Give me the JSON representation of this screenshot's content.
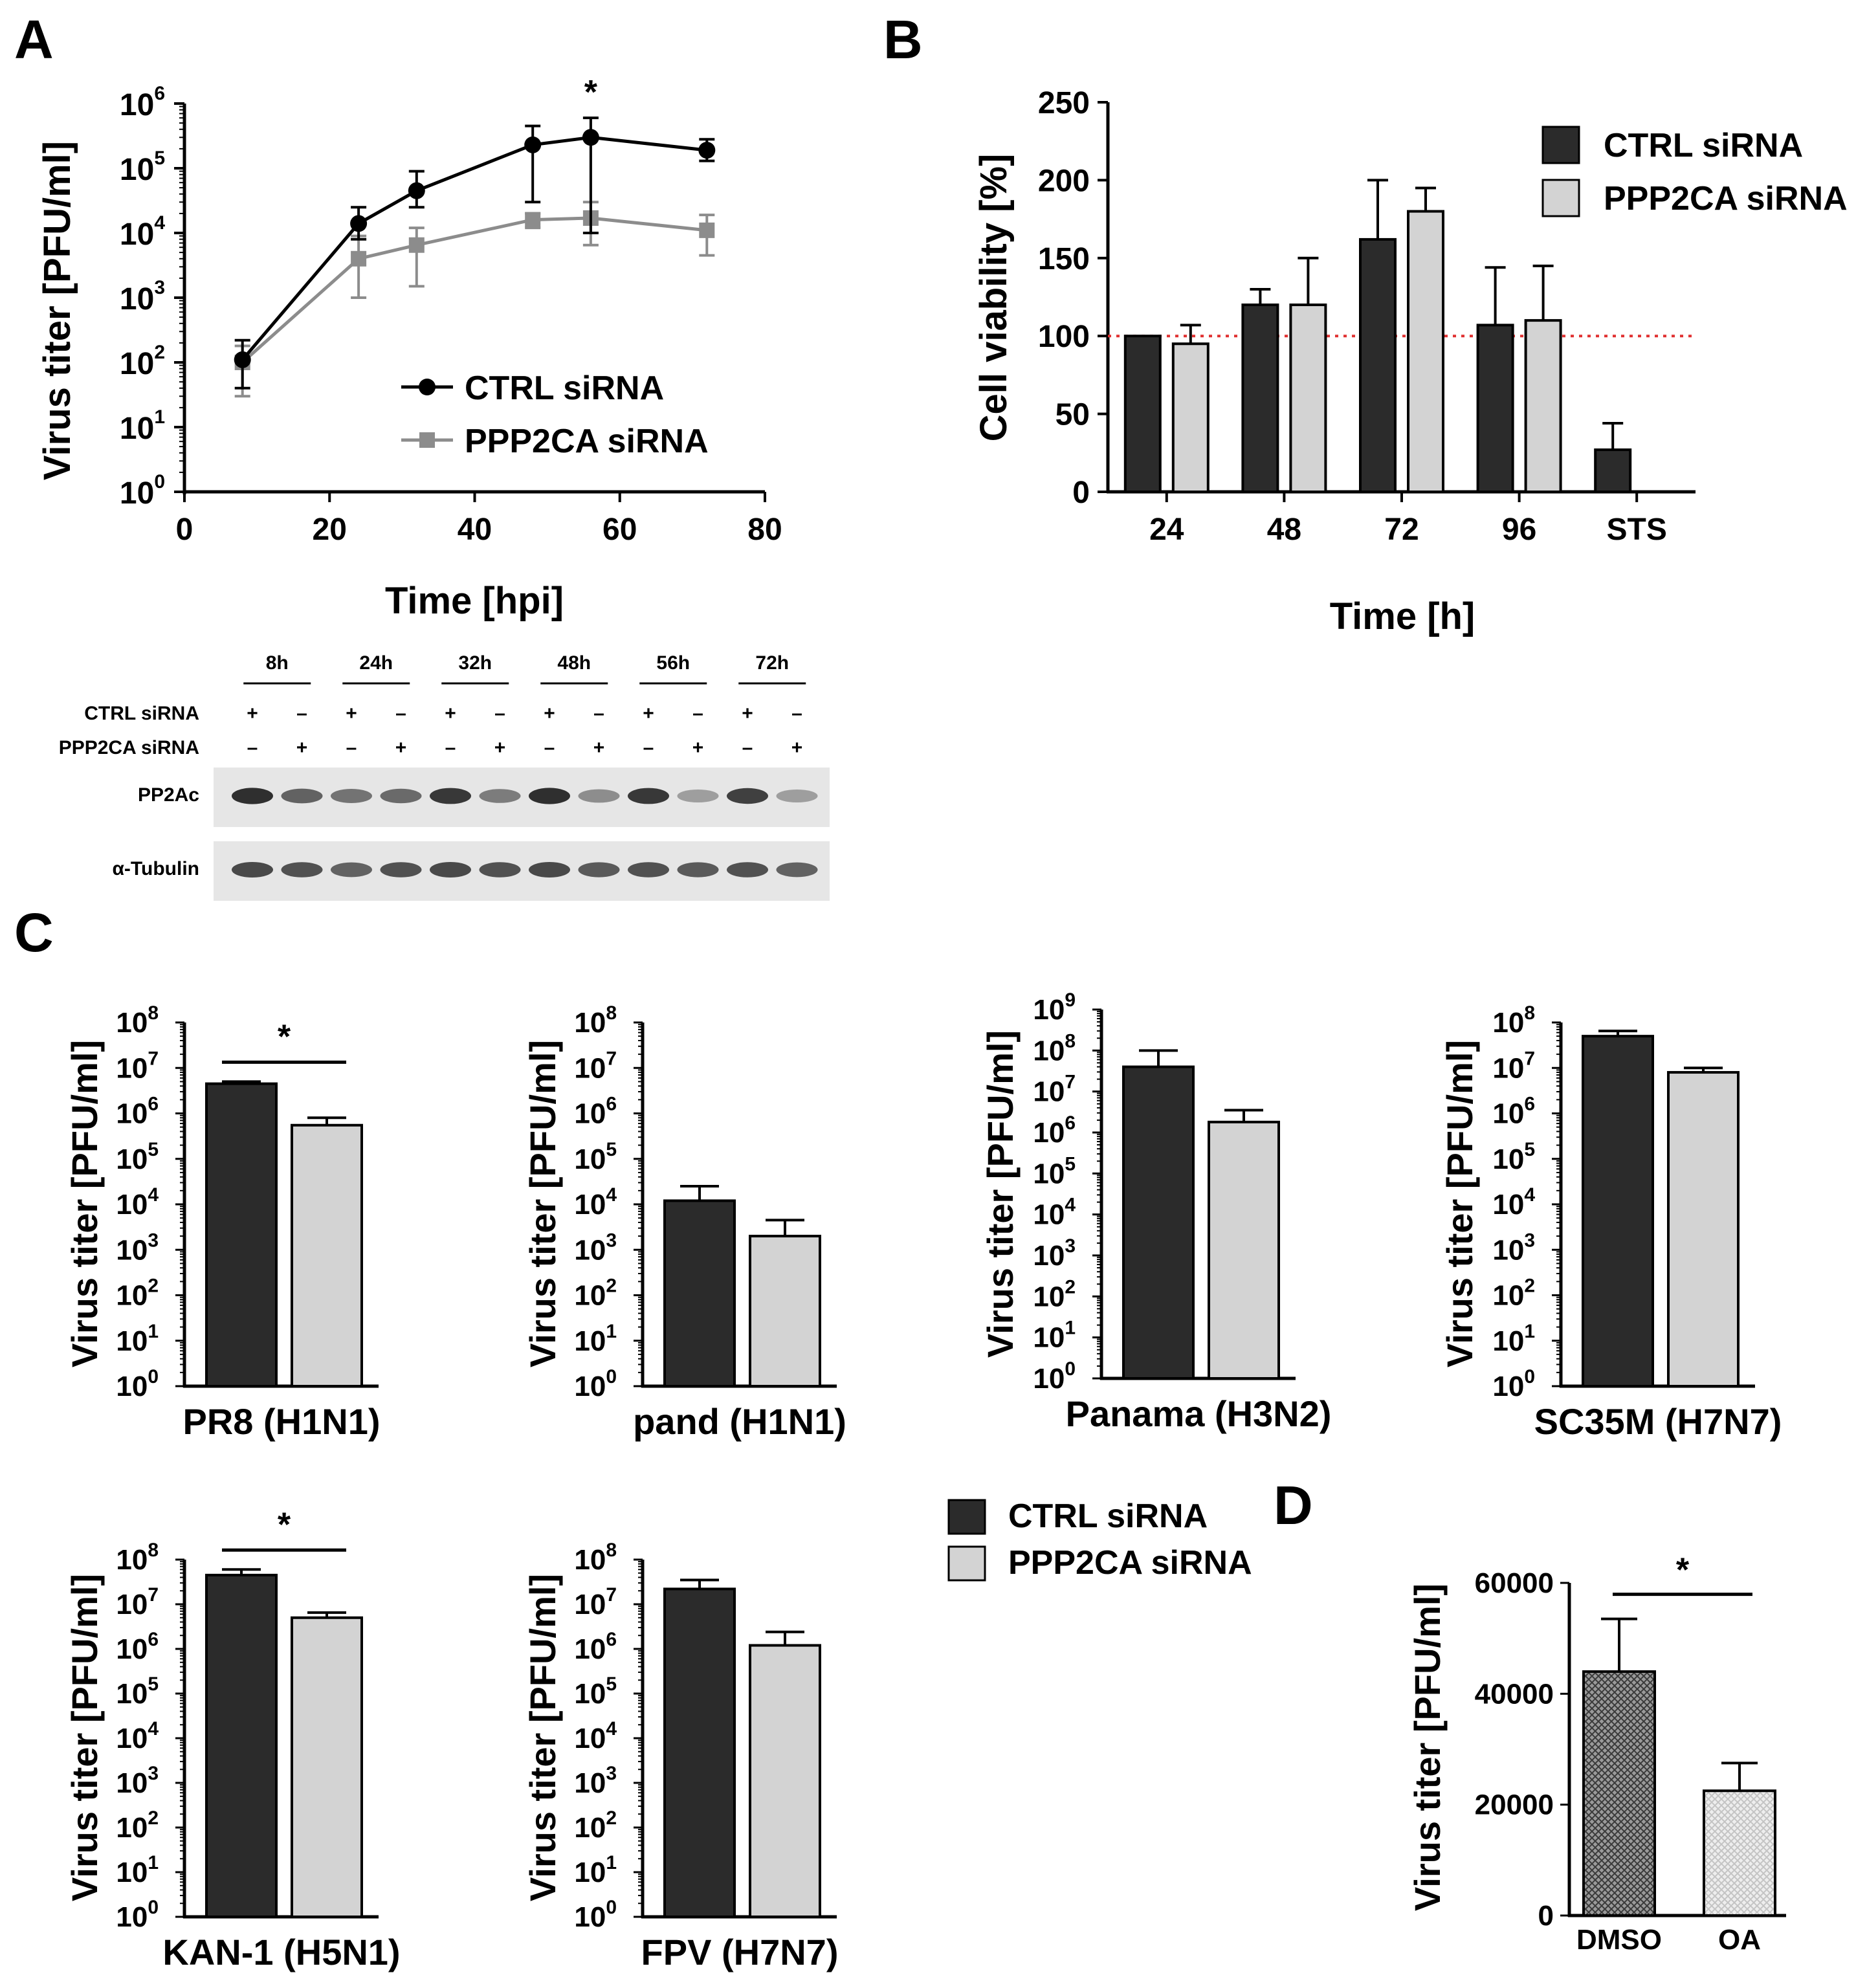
{
  "panel_letters": [
    "A",
    "B",
    "C",
    "D"
  ],
  "legend": {
    "ctrl": "CTRL siRNA",
    "ppp": "PPP2CA siRNA"
  },
  "colors": {
    "ctrl_bar": "#2b2b2b",
    "ppp_bar": "#d3d3d3",
    "ctrl_line": "#000000",
    "ppp_line": "#8c8c8c",
    "ref_line": "#e03030"
  },
  "significance": "*",
  "chart_data": [
    {
      "panel": "A",
      "type": "line",
      "xlabel": "Time [hpi]",
      "ylabel": "Virus titer [PFU/ml]",
      "yscale": "log",
      "xlim": [
        0,
        80
      ],
      "xticks": [
        "0",
        "20",
        "40",
        "60",
        "80"
      ],
      "ylim": [
        1,
        1000000
      ],
      "series": [
        {
          "name": "CTRL siRNA",
          "x": [
            8,
            24,
            32,
            48,
            56,
            72
          ],
          "values": [
            110,
            14000,
            45000,
            230000,
            300000,
            190000
          ],
          "err_high": [
            220,
            25000,
            90000,
            450000,
            600000,
            280000
          ],
          "err_low": [
            40,
            8000,
            25000,
            30000,
            10000,
            130000
          ]
        },
        {
          "name": "PPP2CA siRNA",
          "x": [
            8,
            24,
            32,
            48,
            56,
            72
          ],
          "values": [
            100,
            4000,
            6500,
            16000,
            17000,
            11000
          ],
          "err_high": [
            180,
            9000,
            12000,
            20000,
            30000,
            19000
          ],
          "err_low": [
            30,
            1000,
            1500,
            12000,
            6500,
            4500
          ]
        }
      ],
      "annotations": [
        {
          "x": 56,
          "text": "*"
        }
      ]
    },
    {
      "panel": "B",
      "type": "bar",
      "xlabel": "Time [h]",
      "ylabel": "Cell viability [%]",
      "categories": [
        "24",
        "48",
        "72",
        "96",
        "STS"
      ],
      "ylim": [
        0,
        250
      ],
      "yticks": [
        "0",
        "50",
        "100",
        "150",
        "200",
        "250"
      ],
      "reference_line": 100,
      "series": [
        {
          "name": "CTRL siRNA",
          "values": [
            100,
            120,
            162,
            107,
            27
          ],
          "err": [
            0,
            10,
            38,
            37,
            17
          ]
        },
        {
          "name": "PPP2CA siRNA",
          "values": [
            95,
            120,
            180,
            110,
            null
          ],
          "err": [
            12,
            30,
            15,
            35,
            null
          ]
        }
      ]
    },
    {
      "panel": "C",
      "type": "bar",
      "xlabel": "PR8 (H1N1)",
      "ylabel": "Virus titer [PFU/ml]",
      "yscale": "log",
      "ylim_exp": [
        0,
        8
      ],
      "significance": true,
      "series": [
        {
          "name": "CTRL siRNA",
          "values": [
            4500000
          ],
          "err_high": [
            5000000
          ]
        },
        {
          "name": "PPP2CA siRNA",
          "values": [
            550000
          ],
          "err_high": [
            800000
          ]
        }
      ]
    },
    {
      "panel": "C",
      "type": "bar",
      "xlabel": "pand (H1N1)",
      "ylabel": "Virus titer [PFU/ml]",
      "yscale": "log",
      "ylim_exp": [
        0,
        8
      ],
      "significance": false,
      "series": [
        {
          "name": "CTRL siRNA",
          "values": [
            12000
          ],
          "err_high": [
            25000
          ]
        },
        {
          "name": "PPP2CA siRNA",
          "values": [
            2000
          ],
          "err_high": [
            4500
          ]
        }
      ]
    },
    {
      "panel": "C",
      "type": "bar",
      "xlabel": "Panama (H3N2)",
      "ylabel": "Virus titer [PFU/ml]",
      "yscale": "log",
      "ylim_exp": [
        0,
        9
      ],
      "significance": false,
      "series": [
        {
          "name": "CTRL siRNA",
          "values": [
            40000000
          ],
          "err_high": [
            100000000
          ]
        },
        {
          "name": "PPP2CA siRNA",
          "values": [
            1800000
          ],
          "err_high": [
            3500000
          ]
        }
      ]
    },
    {
      "panel": "C",
      "type": "bar",
      "xlabel": "SC35M (H7N7)",
      "ylabel": "Virus titer [PFU/ml]",
      "yscale": "log",
      "ylim_exp": [
        0,
        8
      ],
      "significance": false,
      "series": [
        {
          "name": "CTRL siRNA",
          "values": [
            50000000
          ],
          "err_high": [
            65000000
          ]
        },
        {
          "name": "PPP2CA siRNA",
          "values": [
            8000000
          ],
          "err_high": [
            10000000
          ]
        }
      ]
    },
    {
      "panel": "C",
      "type": "bar",
      "xlabel": "KAN-1 (H5N1)",
      "ylabel": "Virus titer [PFU/ml]",
      "yscale": "log",
      "ylim_exp": [
        0,
        8
      ],
      "significance": true,
      "series": [
        {
          "name": "CTRL siRNA",
          "values": [
            45000000
          ],
          "err_high": [
            60000000
          ]
        },
        {
          "name": "PPP2CA siRNA",
          "values": [
            5000000
          ],
          "err_high": [
            6500000
          ]
        }
      ]
    },
    {
      "panel": "C",
      "type": "bar",
      "xlabel": "FPV (H7N7)",
      "ylabel": "Virus titer [PFU/ml]",
      "yscale": "log",
      "ylim_exp": [
        0,
        8
      ],
      "significance": false,
      "series": [
        {
          "name": "CTRL siRNA",
          "values": [
            22000000
          ],
          "err_high": [
            35000000
          ]
        },
        {
          "name": "PPP2CA siRNA",
          "values": [
            1200000
          ],
          "err_high": [
            2400000
          ]
        }
      ]
    },
    {
      "panel": "D",
      "type": "bar",
      "xlabel": "",
      "ylabel": "Virus titer [PFU/ml]",
      "categories": [
        "DMSO",
        "OA"
      ],
      "ylim": [
        0,
        60000
      ],
      "yticks": [
        "0",
        "20000",
        "40000",
        "60000"
      ],
      "values": [
        44000,
        22500
      ],
      "err_high": [
        53500,
        27500
      ],
      "significance": true
    }
  ],
  "blot": {
    "timepoints": [
      "8h",
      "24h",
      "32h",
      "48h",
      "56h",
      "72h"
    ],
    "row_labels": [
      "CTRL siRNA",
      "PPP2CA siRNA"
    ],
    "ctrl_signs": [
      "+",
      "–",
      "+",
      "–",
      "+",
      "–",
      "+",
      "–",
      "+",
      "–",
      "+",
      "–"
    ],
    "ppp_signs": [
      "–",
      "+",
      "–",
      "+",
      "–",
      "+",
      "–",
      "+",
      "–",
      "+",
      "–",
      "+"
    ],
    "band_labels": [
      "PP2Ac",
      "α-Tubulin"
    ],
    "pp2ac_intensity": [
      0.9,
      0.6,
      0.5,
      0.55,
      0.85,
      0.45,
      0.9,
      0.35,
      0.85,
      0.25,
      0.8,
      0.25
    ],
    "tubulin_intensity": [
      0.75,
      0.7,
      0.6,
      0.7,
      0.75,
      0.7,
      0.75,
      0.65,
      0.7,
      0.65,
      0.7,
      0.6
    ]
  }
}
